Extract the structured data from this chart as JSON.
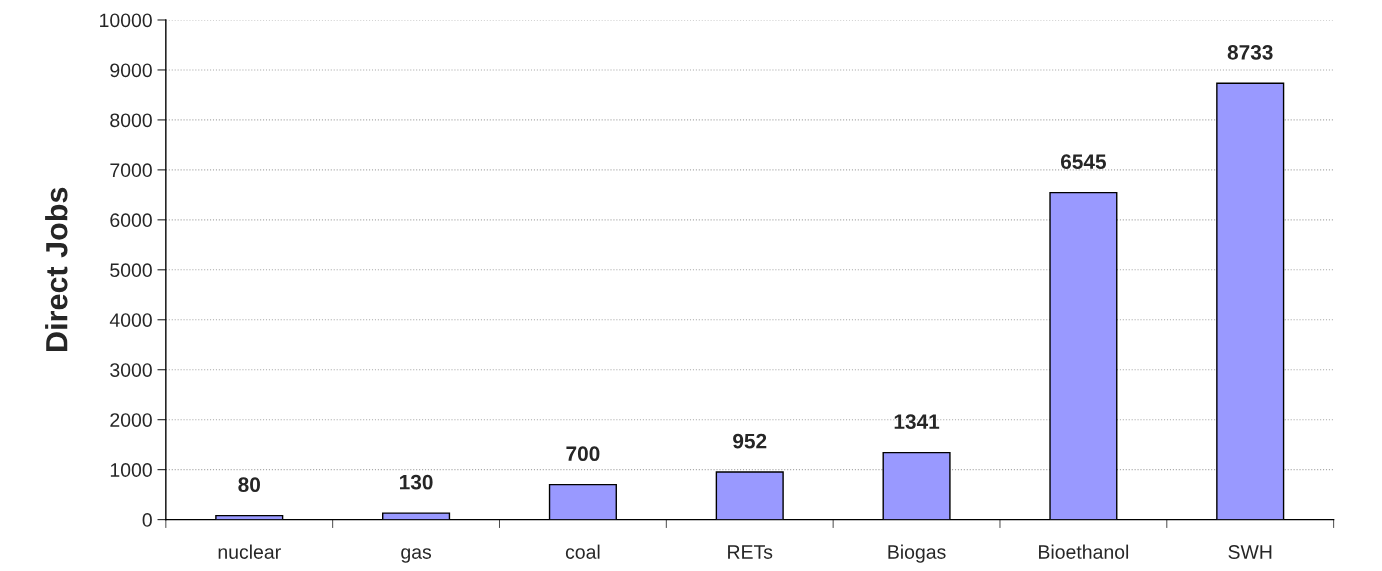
{
  "chart_data": {
    "type": "bar",
    "ylabel": "Direct Jobs",
    "categories": [
      "nuclear",
      "gas",
      "coal",
      "RETs",
      "Biogas",
      "Bioethanol",
      "SWH"
    ],
    "values": [
      80,
      130,
      700,
      952,
      1341,
      6545,
      8733
    ],
    "color": "#9999ff",
    "ylim": [
      0,
      10000
    ],
    "yticks": [
      0,
      1000,
      2000,
      3000,
      4000,
      5000,
      6000,
      7000,
      8000,
      9000,
      10000
    ],
    "grid": "y",
    "data_labels": true
  }
}
